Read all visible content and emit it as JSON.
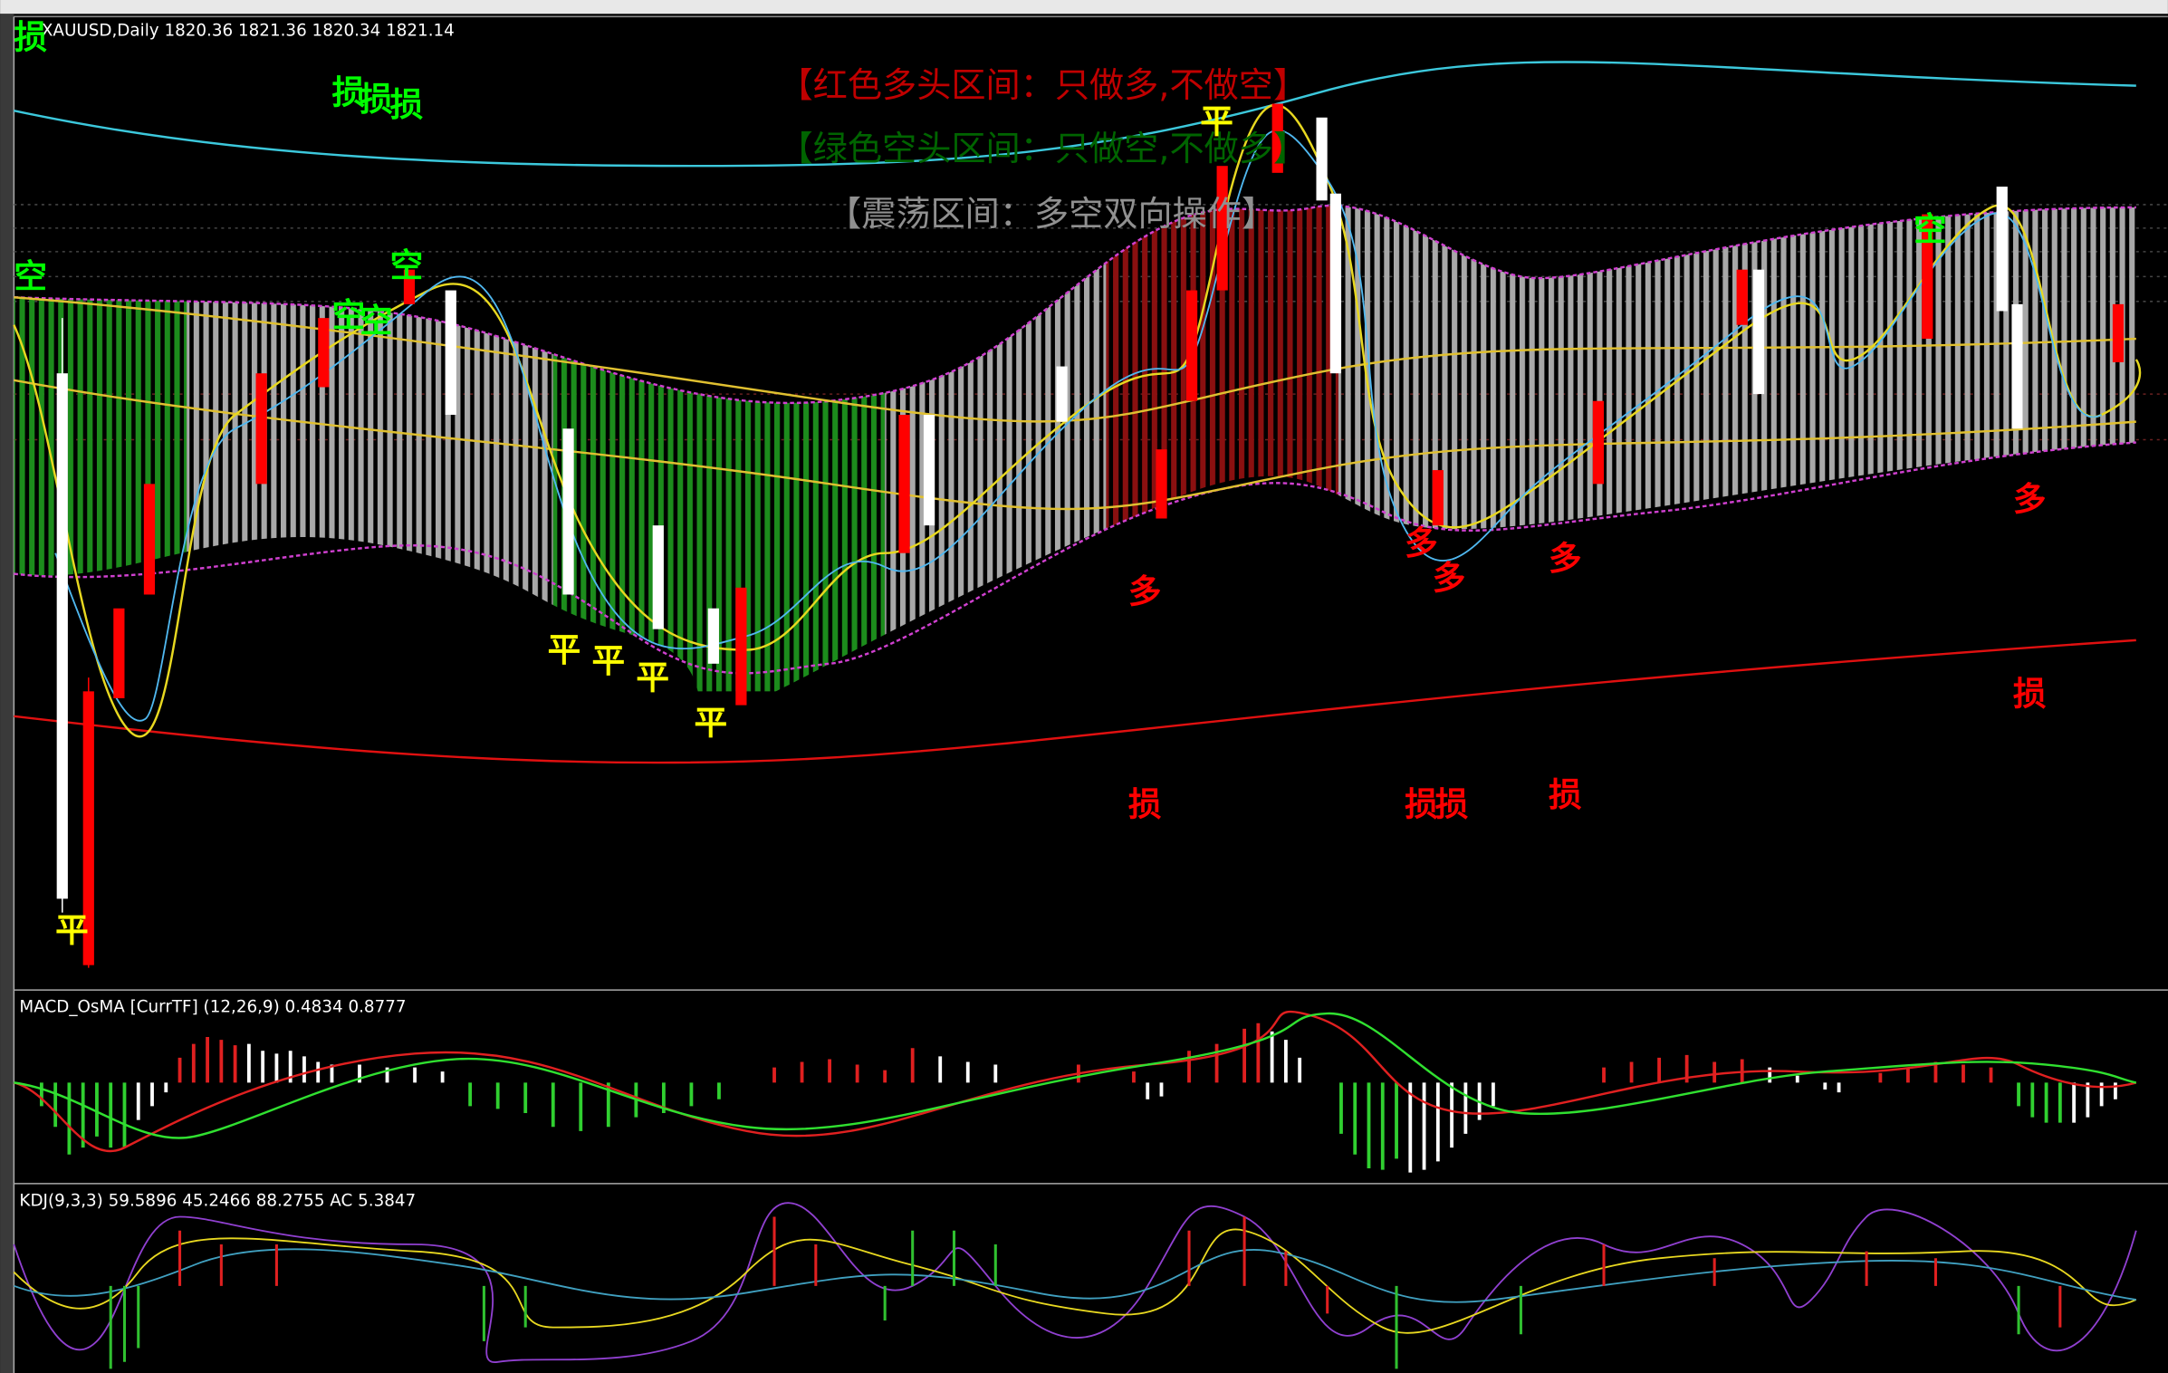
{
  "header": {
    "title": "XAUUSD,Daily  1820.36 1821.36 1820.34 1821.14"
  },
  "legend_texts": [
    {
      "text": "【红色多头区间：只做多,不做空】",
      "color": "#c00000"
    },
    {
      "text": "【绿色空头区间：只做空,不做多】",
      "color": "#006400"
    },
    {
      "text": "【震荡区间：多空双向操作】",
      "color": "#909090"
    }
  ],
  "signals": [
    {
      "text": "损",
      "color": "#00ff00"
    },
    {
      "text": "损",
      "color": "#00ff00"
    },
    {
      "text": "损",
      "color": "#00ff00"
    },
    {
      "text": "损",
      "color": "#00ff00"
    },
    {
      "text": "空",
      "color": "#00ff00"
    },
    {
      "text": "空",
      "color": "#00ff00"
    },
    {
      "text": "空",
      "color": "#00ff00"
    },
    {
      "text": "空",
      "color": "#00ff00"
    },
    {
      "text": "空",
      "color": "#00ff00"
    },
    {
      "text": "平",
      "color": "#ffff00"
    },
    {
      "text": "平",
      "color": "#ffff00"
    },
    {
      "text": "平",
      "color": "#ffff00"
    },
    {
      "text": "平",
      "color": "#ffff00"
    },
    {
      "text": "平",
      "color": "#ffff00"
    },
    {
      "text": "平",
      "color": "#ffff00"
    },
    {
      "text": "多",
      "color": "#ff0000"
    },
    {
      "text": "多",
      "color": "#ff0000"
    },
    {
      "text": "多",
      "color": "#ff0000"
    },
    {
      "text": "多",
      "color": "#ff0000"
    },
    {
      "text": "多",
      "color": "#ff0000"
    },
    {
      "text": "损",
      "color": "#ff0000"
    },
    {
      "text": "损",
      "color": "#ff0000"
    },
    {
      "text": "损",
      "color": "#ff0000"
    },
    {
      "text": "损",
      "color": "#ff0000"
    },
    {
      "text": "损",
      "color": "#ff0000"
    }
  ],
  "indicators": {
    "macd": "MACD_OsMA [CurrTF] (12,26,9) 0.4834 0.8777",
    "kdj": "KDJ(9,3,3) 59.5896 45.2466 88.2755  AC 5.3847"
  }
}
